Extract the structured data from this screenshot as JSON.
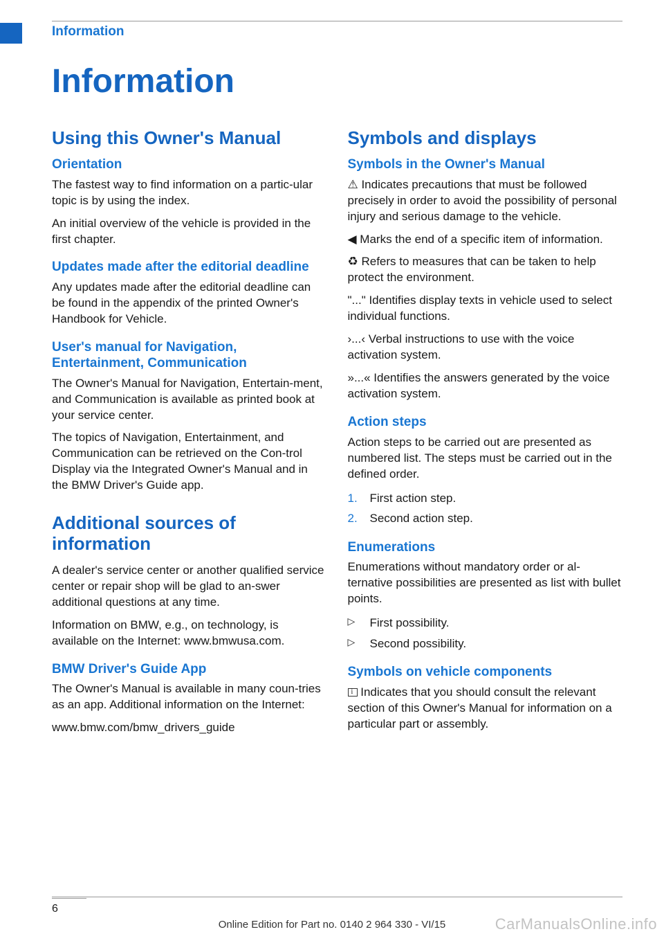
{
  "colors": {
    "brand_blue": "#1565c0",
    "heading_blue": "#1976d2",
    "body_text": "#1a1a1a",
    "rule": "#999999",
    "background": "#ffffff",
    "watermark": "rgba(120,120,120,0.45)"
  },
  "header": {
    "section_label": "Information"
  },
  "page_title": "Information",
  "left_column": {
    "s1": {
      "title": "Using this Owner's Manual",
      "orientation": {
        "heading": "Orientation",
        "p1": "The fastest way to find information on a partic‐ular topic is by using the index.",
        "p2": "An initial overview of the vehicle is provided in the first chapter."
      },
      "updates": {
        "heading": "Updates made after the editorial deadline",
        "p1": "Any updates made after the editorial deadline can be found in the appendix of the printed Owner's Handbook for Vehicle."
      },
      "users_manual": {
        "heading": "User's manual for Navigation, Entertainment, Communication",
        "p1": "The Owner's Manual for Navigation, Entertain‐ment, and Communication is available as printed book at your service center.",
        "p2": "The topics of Navigation, Entertainment, and Communication can be retrieved on the Con‐trol Display via the Integrated Owner's Manual and in the BMW Driver's Guide app."
      }
    },
    "s2": {
      "title": "Additional sources of information",
      "p1": "A dealer's service center or another qualified service center or repair shop will be glad to an‐swer additional questions at any time.",
      "p2": "Information on BMW, e.g., on technology, is available on the Internet: www.bmwusa.com.",
      "app": {
        "heading": "BMW Driver's Guide App",
        "p1": "The Owner's Manual is available in many coun‐tries as an app. Additional information on the Internet:",
        "p2": "www.bmw.com/bmw_drivers_guide"
      }
    }
  },
  "right_column": {
    "s1": {
      "title": "Symbols and displays",
      "symbols": {
        "heading": "Symbols in the Owner's Manual",
        "p1": "⚠  Indicates precautions that must be followed precisely in order to avoid the possibility of personal injury and serious damage to the vehicle.",
        "p2": "◀ Marks the end of a specific item of information.",
        "p3": "♻  Refers to measures that can be taken to help protect the environment.",
        "p4": "\"...\" Identifies display texts in vehicle used to select individual functions.",
        "p5": "›...‹ Verbal instructions to use with the voice activation system.",
        "p6": "»...« Identifies the answers generated by the voice activation system."
      },
      "action_steps": {
        "heading": "Action steps",
        "p1": "Action steps to be carried out are presented as numbered list. The steps must be carried out in the defined order.",
        "items": {
          "n1": "1.",
          "t1": "First action step.",
          "n2": "2.",
          "t2": "Second action step."
        }
      },
      "enumerations": {
        "heading": "Enumerations",
        "p1": "Enumerations without mandatory order or al‐ternative possibilities are presented as list with bullet points.",
        "items": {
          "b": "▷",
          "t1": "First possibility.",
          "t2": "Second possibility."
        }
      },
      "vehicle_components": {
        "heading": "Symbols on vehicle components",
        "p1": " Indicates that you should consult the relevant section of this Owner's Manual for information on a particular part or assembly."
      }
    }
  },
  "footer": {
    "page_number": "6",
    "edition_line": "Online Edition for Part no. 0140 2 964 330 - VI/15",
    "watermark": "CarManualsOnline.info"
  }
}
